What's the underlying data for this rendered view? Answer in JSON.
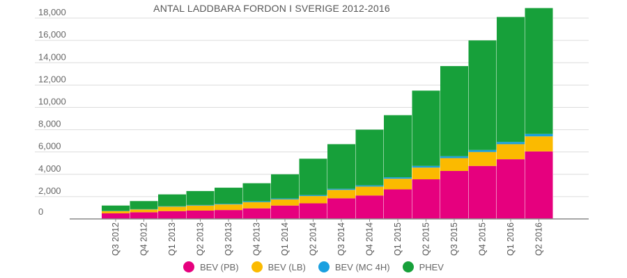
{
  "chart_data": {
    "type": "bar",
    "stacked": true,
    "title": "ANTAL LADDBARA FORDON I SVERIGE 2012-2016",
    "xlabel": "",
    "ylabel": "",
    "ylim": [
      0,
      19000
    ],
    "yticks": [
      0,
      2000,
      4000,
      6000,
      8000,
      10000,
      12000,
      14000,
      16000,
      18000
    ],
    "ytick_labels": [
      "0",
      "2,000",
      "4,000",
      "6,000",
      "8,000",
      "10,000",
      "12,000",
      "14,000",
      "16,000",
      "18,000"
    ],
    "grid": true,
    "legend_position": "bottom",
    "categories": [
      "Q3 2012",
      "Q4 2012",
      "Q1 2013",
      "Q2 2013",
      "Q3 2013",
      "Q4 2013",
      "Q1 2014",
      "Q2 2014",
      "Q3 2014",
      "Q4 2014",
      "Q1 2015",
      "Q2 2015",
      "Q3 2015",
      "Q4 2015",
      "Q1 2016",
      "Q2 2016"
    ],
    "series": [
      {
        "name": "BEV (PB)",
        "color": "#e6007e",
        "values": [
          500,
          600,
          700,
          750,
          800,
          950,
          1200,
          1400,
          1850,
          2100,
          2650,
          3550,
          4300,
          4750,
          5350,
          6050
        ]
      },
      {
        "name": "BEV (LB)",
        "color": "#fbba00",
        "values": [
          200,
          250,
          400,
          450,
          500,
          550,
          550,
          650,
          750,
          800,
          950,
          1050,
          1150,
          1250,
          1350,
          1350
        ]
      },
      {
        "name": "BEV (MC 4H)",
        "color": "#1aa0e0",
        "values": [
          20,
          30,
          40,
          50,
          60,
          70,
          80,
          90,
          100,
          110,
          130,
          150,
          170,
          180,
          200,
          220
        ]
      },
      {
        "name": "PHEV",
        "color": "#17a03a",
        "values": [
          480,
          720,
          1060,
          1250,
          1440,
          1630,
          2170,
          3260,
          4000,
          4990,
          5570,
          6750,
          8080,
          9820,
          11200,
          11280
        ]
      }
    ]
  }
}
